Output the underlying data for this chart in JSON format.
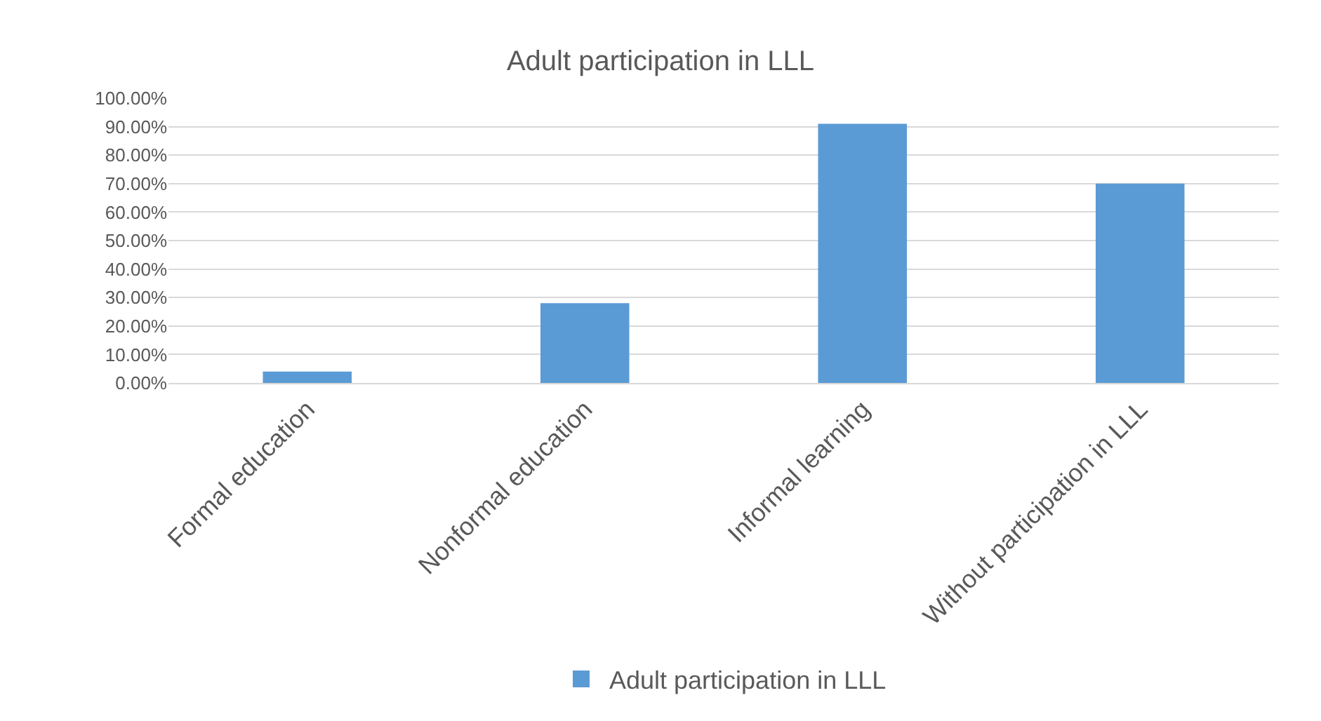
{
  "chart_data": {
    "type": "bar",
    "title": "Adult participation in LLL",
    "categories": [
      "Formal education",
      "Nonformal education",
      "Informal learning",
      "Without participation in LLL"
    ],
    "series": [
      {
        "name": "Adult participation in LLL",
        "color": "#5b9bd5",
        "values": [
          4,
          28,
          91,
          70
        ]
      }
    ],
    "ylim": [
      0,
      100
    ],
    "yticks": [
      {
        "value": 0,
        "label": "0.00%"
      },
      {
        "value": 10,
        "label": "10.00%"
      },
      {
        "value": 20,
        "label": "20.00%"
      },
      {
        "value": 30,
        "label": "30.00%"
      },
      {
        "value": 40,
        "label": "40.00%"
      },
      {
        "value": 50,
        "label": "50.00%"
      },
      {
        "value": 60,
        "label": "60.00%"
      },
      {
        "value": 70,
        "label": "70.00%"
      },
      {
        "value": 80,
        "label": "80.00%"
      },
      {
        "value": 90,
        "label": "90.00%"
      },
      {
        "value": 100,
        "label": "100.00%"
      }
    ],
    "grid": "y",
    "legend": "bottom"
  }
}
